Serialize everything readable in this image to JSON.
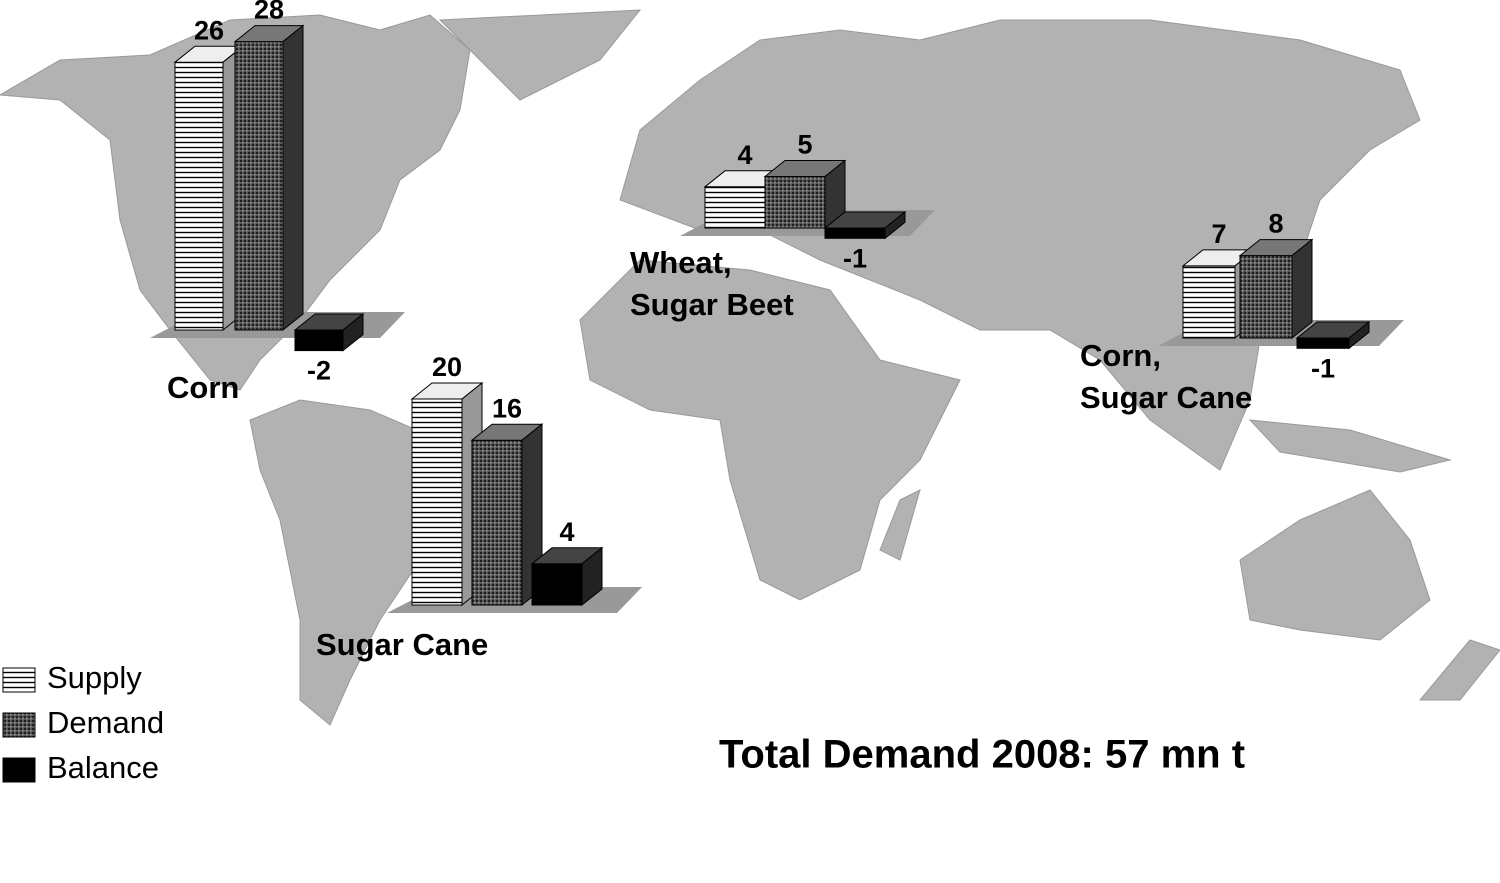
{
  "series": [
    "Supply",
    "Demand",
    "Balance"
  ],
  "regions": [
    {
      "label": [
        "Corn"
      ],
      "values": [
        26,
        28,
        -2
      ]
    },
    {
      "label": [
        "Sugar Cane"
      ],
      "values": [
        20,
        16,
        4
      ]
    },
    {
      "label": [
        "Wheat,",
        "Sugar Beet"
      ],
      "values": [
        4,
        5,
        -1
      ]
    },
    {
      "label": [
        "Corn,",
        "Sugar Cane"
      ],
      "values": [
        7,
        8,
        -1
      ]
    }
  ],
  "total": "Total Demand 2008: 57 mn t"
}
